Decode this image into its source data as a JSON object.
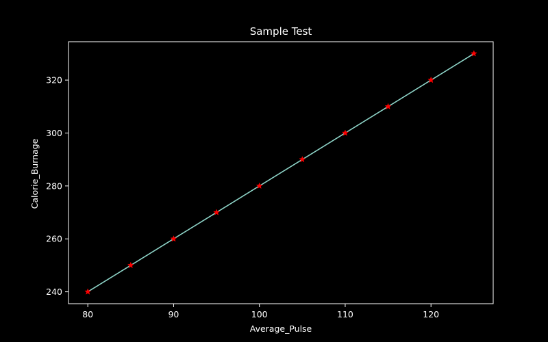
{
  "chart_data": {
    "type": "line",
    "title": "Sample Test",
    "xlabel": "Average_Pulse",
    "ylabel": "Calorie_Burnage",
    "x": [
      80,
      85,
      90,
      95,
      100,
      105,
      110,
      115,
      120,
      125
    ],
    "series": [
      {
        "values": [
          240,
          250,
          260,
          270,
          280,
          290,
          300,
          310,
          320,
          330
        ],
        "line_color": "#8dd3c7",
        "marker": "star",
        "marker_color": "#ff0000"
      }
    ],
    "xlim": [
      77.75,
      127.25
    ],
    "ylim": [
      235.5,
      334.5
    ],
    "xticks": [
      80,
      90,
      100,
      110,
      120
    ],
    "yticks": [
      240,
      260,
      280,
      300,
      320
    ],
    "grid": false,
    "background": "#000000",
    "axis_color": "#ffffff",
    "text_color": "#ffffff"
  }
}
